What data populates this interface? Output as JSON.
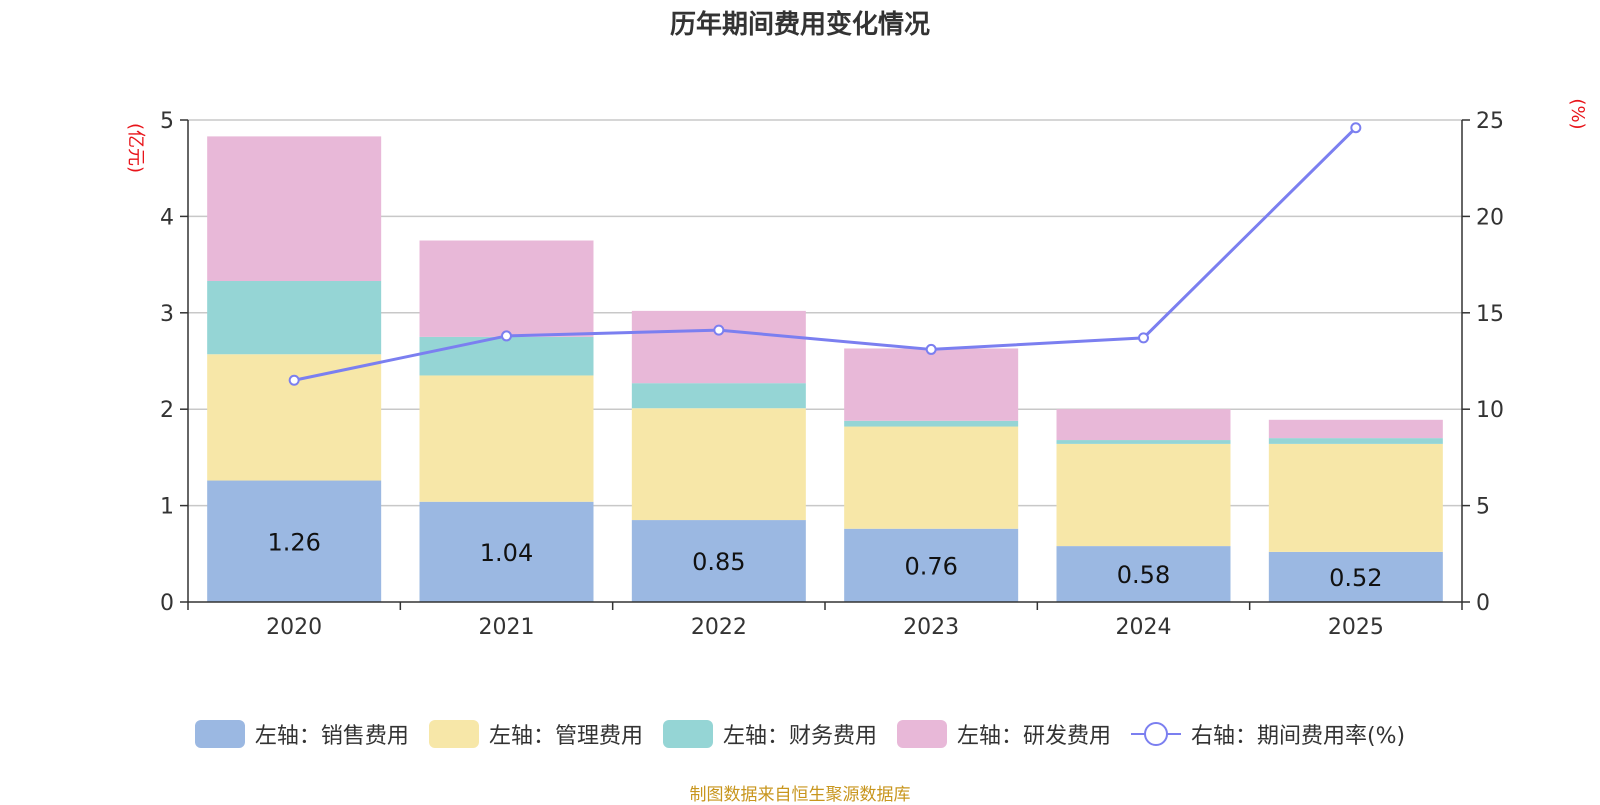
{
  "chart_data": {
    "type": "bar",
    "stacked": true,
    "title": "历年期间费用变化情况",
    "categories": [
      "2020",
      "2021",
      "2022",
      "2023",
      "2024",
      "2025"
    ],
    "left_axis": {
      "unit": "(亿元)",
      "range": [
        0,
        5
      ],
      "ticks": [
        "0",
        "1",
        "2",
        "3",
        "4",
        "5"
      ]
    },
    "right_axis": {
      "unit": "(%)",
      "range": [
        0,
        25
      ],
      "ticks": [
        "0",
        "5",
        "10",
        "15",
        "20",
        "25"
      ]
    },
    "series": [
      {
        "name": "左轴：销售费用",
        "axis": "left",
        "color": "#9bb8e2",
        "values": [
          1.26,
          1.04,
          0.85,
          0.76,
          0.58,
          0.52
        ],
        "labels": [
          "1.26",
          "1.04",
          "0.85",
          "0.76",
          "0.58",
          "0.52"
        ]
      },
      {
        "name": "左轴：管理费用",
        "axis": "left",
        "color": "#f7e7a8",
        "values": [
          1.31,
          1.31,
          1.16,
          1.06,
          1.06,
          1.12
        ]
      },
      {
        "name": "左轴：财务费用",
        "axis": "left",
        "color": "#95d5d5",
        "values": [
          0.76,
          0.4,
          0.26,
          0.06,
          0.04,
          0.06
        ]
      },
      {
        "name": "左轴：研发费用",
        "axis": "left",
        "color": "#e8b8d8",
        "values": [
          1.5,
          1.0,
          0.75,
          0.75,
          0.32,
          0.19
        ]
      },
      {
        "name": "右轴：期间费用率(%)",
        "axis": "right",
        "type": "line",
        "color": "#7b7ff0",
        "values": [
          11.5,
          13.8,
          14.1,
          13.1,
          13.7,
          24.6
        ]
      }
    ],
    "grid": true,
    "legend_position": "bottom"
  },
  "source": "制图数据来自恒生聚源数据库"
}
